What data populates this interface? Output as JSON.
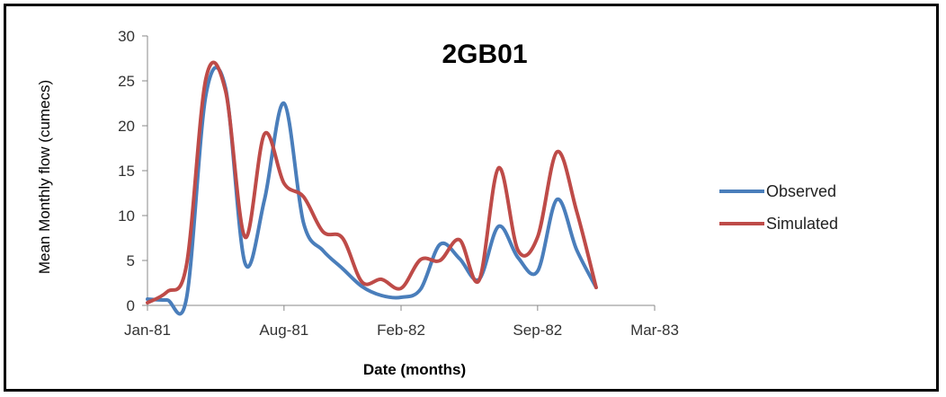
{
  "chart_data": {
    "type": "line",
    "title": "2GB01",
    "xlabel": "Date (months)",
    "ylabel": "Mean Monthly flow (cumecs)",
    "xlim": [
      0,
      26
    ],
    "ylim": [
      0,
      30
    ],
    "x_ticks": [
      {
        "label": "Jan-81",
        "value": 0
      },
      {
        "label": "Aug-81",
        "value": 7
      },
      {
        "label": "Feb-82",
        "value": 13
      },
      {
        "label": "Sep-82",
        "value": 20
      },
      {
        "label": "Mar-83",
        "value": 26
      }
    ],
    "y_ticks": [
      0,
      5,
      10,
      15,
      20,
      25,
      30
    ],
    "legend_position": "right",
    "series": [
      {
        "name": "Observed",
        "color": "#4A7EBB",
        "x": [
          0,
          1,
          2,
          3,
          4,
          5,
          6,
          7,
          8,
          9,
          10,
          11,
          12,
          13,
          14,
          15,
          16,
          17,
          18,
          19,
          20,
          21,
          22,
          23
        ],
        "values": [
          0.7,
          0.6,
          0.8,
          23.5,
          24.2,
          4.7,
          11.8,
          22.5,
          9.2,
          6.1,
          4.1,
          2.1,
          1.1,
          0.9,
          1.8,
          6.8,
          5.2,
          2.9,
          8.8,
          5.3,
          3.8,
          11.8,
          6.2,
          2.0
        ]
      },
      {
        "name": "Simulated",
        "color": "#BE4B48",
        "x": [
          0,
          1,
          2,
          3,
          4,
          5,
          6,
          7,
          8,
          9,
          10,
          11,
          12,
          13,
          14,
          15,
          16,
          17,
          18,
          19,
          20,
          21,
          22,
          23
        ],
        "values": [
          0.3,
          1.5,
          4.5,
          25.3,
          23.9,
          7.6,
          19.1,
          13.6,
          12.1,
          8.2,
          7.5,
          2.6,
          2.9,
          1.9,
          5.1,
          5.0,
          7.3,
          2.8,
          15.3,
          6.1,
          7.6,
          17.1,
          10.5,
          2.0
        ]
      }
    ]
  }
}
